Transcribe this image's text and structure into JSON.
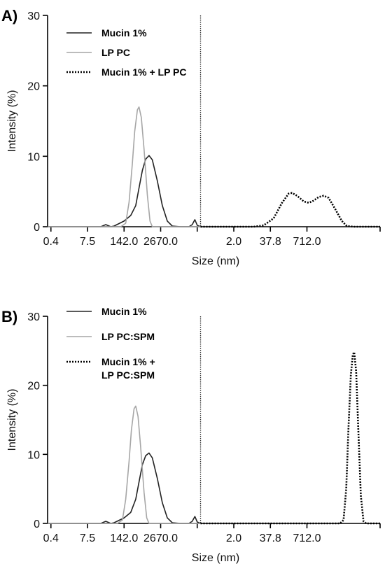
{
  "chart_data": [
    {
      "type": "line",
      "panel_label": "A)",
      "xlabel": "Size (nm)",
      "ylabel": "Intensity (%)",
      "ylim": [
        0,
        30
      ],
      "yticks": [
        "0",
        "10",
        "20",
        "30"
      ],
      "xticks": [
        "0.4",
        "7.5",
        "142.0",
        "2670.0",
        "2.0",
        "37.8",
        "712.0"
      ],
      "legend_position": "top-left",
      "divider_tick": 4.6,
      "series": [
        {
          "name": "Mucin 1%",
          "style": "solid",
          "color": "#222222",
          "points": [
            [
              0,
              0
            ],
            [
              1,
              0
            ],
            [
              1.6,
              0
            ],
            [
              1.75,
              0.3
            ],
            [
              1.9,
              0
            ],
            [
              2.0,
              0.1
            ],
            [
              2.3,
              0.8
            ],
            [
              2.5,
              1.6
            ],
            [
              2.65,
              3
            ],
            [
              2.75,
              5.5
            ],
            [
              2.85,
              8
            ],
            [
              2.95,
              9.6
            ],
            [
              3.05,
              10.1
            ],
            [
              3.15,
              9.5
            ],
            [
              3.3,
              6.5
            ],
            [
              3.45,
              3
            ],
            [
              3.6,
              0.8
            ],
            [
              3.75,
              0.1
            ],
            [
              4.0,
              0
            ],
            [
              4.25,
              0
            ],
            [
              4.35,
              0.3
            ],
            [
              4.43,
              1.0
            ],
            [
              4.5,
              0.2
            ],
            [
              4.6,
              0
            ]
          ]
        },
        {
          "name": "LP PC",
          "style": "solid",
          "color": "#a6a6a6",
          "points": [
            [
              0,
              0
            ],
            [
              2.2,
              0
            ],
            [
              2.35,
              0.5
            ],
            [
              2.45,
              3.5
            ],
            [
              2.55,
              9
            ],
            [
              2.62,
              13.5
            ],
            [
              2.7,
              16.6
            ],
            [
              2.75,
              17
            ],
            [
              2.82,
              15.5
            ],
            [
              2.9,
              11
            ],
            [
              3.0,
              4.5
            ],
            [
              3.08,
              0.8
            ],
            [
              3.15,
              0
            ],
            [
              4.6,
              0
            ]
          ]
        },
        {
          "name": "Mucin 1% + LP PC",
          "style": "dotted",
          "color": "#000000",
          "points": [
            [
              4.6,
              0
            ],
            [
              6.2,
              0
            ],
            [
              6.5,
              0.2
            ],
            [
              6.8,
              1.2
            ],
            [
              7.05,
              3.4
            ],
            [
              7.25,
              4.7
            ],
            [
              7.35,
              4.8
            ],
            [
              7.5,
              4.4
            ],
            [
              7.7,
              3.6
            ],
            [
              7.85,
              3.4
            ],
            [
              8.0,
              3.7
            ],
            [
              8.15,
              4.2
            ],
            [
              8.3,
              4.4
            ],
            [
              8.45,
              4.1
            ],
            [
              8.65,
              2.5
            ],
            [
              8.85,
              0.8
            ],
            [
              9.0,
              0.1
            ],
            [
              9.2,
              0
            ],
            [
              10.0,
              0
            ]
          ]
        }
      ]
    },
    {
      "type": "line",
      "panel_label": "B)",
      "xlabel": "Size (nm)",
      "ylabel": "Intensity (%)",
      "ylim": [
        0,
        30
      ],
      "yticks": [
        "0",
        "10",
        "20",
        "30"
      ],
      "xticks": [
        "0.4",
        "7.5",
        "142.0",
        "2670.0",
        "2.0",
        "37.8",
        "712.0"
      ],
      "legend_position": "top-left",
      "divider_tick": 4.6,
      "series": [
        {
          "name": "Mucin 1%",
          "style": "solid",
          "color": "#222222",
          "points": [
            [
              0,
              0
            ],
            [
              1,
              0
            ],
            [
              1.6,
              0
            ],
            [
              1.75,
              0.3
            ],
            [
              1.9,
              0
            ],
            [
              2.0,
              0.1
            ],
            [
              2.3,
              0.8
            ],
            [
              2.5,
              1.6
            ],
            [
              2.65,
              3.5
            ],
            [
              2.75,
              6
            ],
            [
              2.85,
              8.5
            ],
            [
              2.95,
              9.8
            ],
            [
              3.05,
              10.2
            ],
            [
              3.15,
              9.5
            ],
            [
              3.3,
              6.5
            ],
            [
              3.45,
              3
            ],
            [
              3.6,
              0.8
            ],
            [
              3.75,
              0.1
            ],
            [
              4.0,
              0
            ],
            [
              4.25,
              0
            ],
            [
              4.35,
              0.3
            ],
            [
              4.43,
              1.0
            ],
            [
              4.5,
              0.2
            ],
            [
              4.6,
              0
            ]
          ]
        },
        {
          "name": "LP PC:SPM",
          "style": "solid",
          "color": "#a6a6a6",
          "points": [
            [
              0,
              0
            ],
            [
              2.1,
              0
            ],
            [
              2.25,
              0.5
            ],
            [
              2.35,
              3.5
            ],
            [
              2.45,
              9
            ],
            [
              2.52,
              13.5
            ],
            [
              2.6,
              16.6
            ],
            [
              2.65,
              17
            ],
            [
              2.72,
              15.5
            ],
            [
              2.8,
              11
            ],
            [
              2.9,
              4.5
            ],
            [
              2.98,
              0.8
            ],
            [
              3.05,
              0
            ],
            [
              4.6,
              0
            ]
          ]
        },
        {
          "name": "Mucin 1% +\nLP PC:SPM",
          "style": "dotted",
          "color": "#000000",
          "points": [
            [
              4.6,
              0
            ],
            [
              8.8,
              0
            ],
            [
              8.9,
              0.5
            ],
            [
              8.98,
              5
            ],
            [
              9.05,
              14
            ],
            [
              9.12,
              21.5
            ],
            [
              9.18,
              24.5
            ],
            [
              9.22,
              24.8
            ],
            [
              9.28,
              22
            ],
            [
              9.35,
              13
            ],
            [
              9.42,
              4
            ],
            [
              9.5,
              0.3
            ],
            [
              9.58,
              0
            ],
            [
              10.0,
              0
            ]
          ]
        }
      ]
    }
  ]
}
